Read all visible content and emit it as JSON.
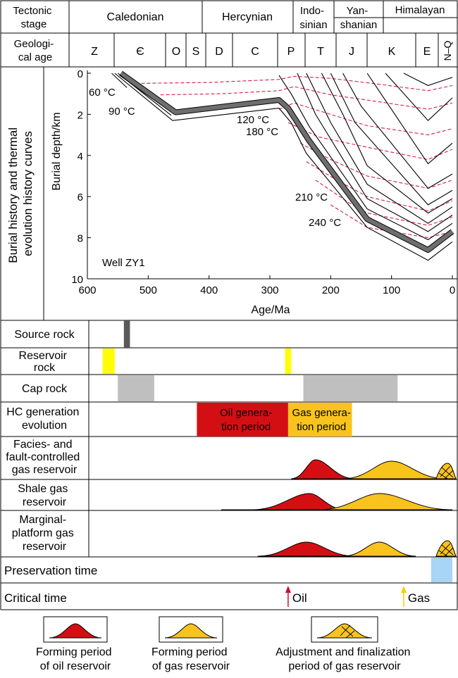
{
  "header": {
    "tectonic_label": [
      "Tectonic",
      "stage"
    ],
    "geological_label": [
      "Geologi-",
      "cal age"
    ],
    "stages": [
      {
        "lines": [
          "Caledonian"
        ]
      },
      {
        "lines": [
          "Hercynian"
        ]
      },
      {
        "lines": [
          "Indo-",
          "sinian"
        ]
      },
      {
        "lines": [
          "Yan-",
          "shanian"
        ]
      },
      {
        "lines": [
          "Himalayan"
        ]
      }
    ],
    "periods": [
      "Z",
      "Є",
      "O",
      "S",
      "D",
      "C",
      "P",
      "T",
      "J",
      "K",
      "E",
      "N–Q"
    ]
  },
  "burial_panel": {
    "side_label": [
      "Burial history and thermal",
      "evolution history curves"
    ],
    "y_axis_label": "Burial depth/km",
    "x_axis_label": "Age/Ma",
    "x_ticks": [
      600,
      500,
      400,
      300,
      200,
      100,
      0
    ],
    "y_ticks": [
      0,
      2,
      4,
      6,
      8,
      10
    ],
    "well_label": "Well ZY1",
    "isotherm_labels": [
      "60 °C",
      "90 °C",
      "120 °C",
      "180 °C",
      "210 °C",
      "240 °C"
    ],
    "source_rock_curve": [
      [
        545,
        0
      ],
      [
        455,
        1.9
      ],
      [
        285,
        1.3
      ],
      [
        270,
        1.7
      ],
      [
        235,
        3.3
      ],
      [
        140,
        7.1
      ],
      [
        40,
        8.6
      ],
      [
        0,
        7.7
      ]
    ]
  },
  "rows": [
    {
      "lines": [
        "Source rock"
      ]
    },
    {
      "lines": [
        "Reservoir",
        "rock"
      ]
    },
    {
      "lines": [
        "Cap rock"
      ]
    },
    {
      "lines": [
        "HC generation",
        "evolution"
      ]
    },
    {
      "lines": [
        "Facies- and",
        "fault-controlled",
        "gas reservoir"
      ]
    },
    {
      "lines": [
        "Shale gas",
        "reservoir"
      ]
    },
    {
      "lines": [
        "Marginal-",
        "platform gas",
        "reservoir"
      ]
    }
  ],
  "bars": {
    "source_rock": [
      [
        540,
        530
      ]
    ],
    "reservoir_rock": [
      [
        575,
        555
      ],
      [
        275,
        265
      ]
    ],
    "cap_rock": [
      [
        550,
        490
      ],
      [
        245,
        90
      ]
    ],
    "oil_period": {
      "range": [
        420,
        270
      ],
      "lines": [
        "Oil genera-",
        "tion period"
      ]
    },
    "gas_period": {
      "range": [
        270,
        165
      ],
      "lines": [
        "Gas genera-",
        "tion period"
      ]
    },
    "preservation": [
      [
        35,
        0
      ]
    ]
  },
  "preservation_label": "Preservation time",
  "critical": {
    "label": "Critical time",
    "oil": "Oil",
    "gas": "Gas",
    "oil_age": 270,
    "gas_age": 80
  },
  "legend": [
    {
      "lines": [
        "Forming period",
        "of oil reservoir"
      ]
    },
    {
      "lines": [
        "Forming period",
        "of gas reservoir"
      ]
    },
    {
      "lines": [
        "Adjustment and finalization",
        "period of gas reservoir"
      ]
    }
  ],
  "colors": {
    "oil": "#d40f14",
    "gas": "#f9c31e",
    "cap": "#bfbfbf",
    "source": "#595959",
    "reservoir": "#ffff00",
    "preservation": "#a8d4f5",
    "isotherm": "#d81b4a"
  }
}
